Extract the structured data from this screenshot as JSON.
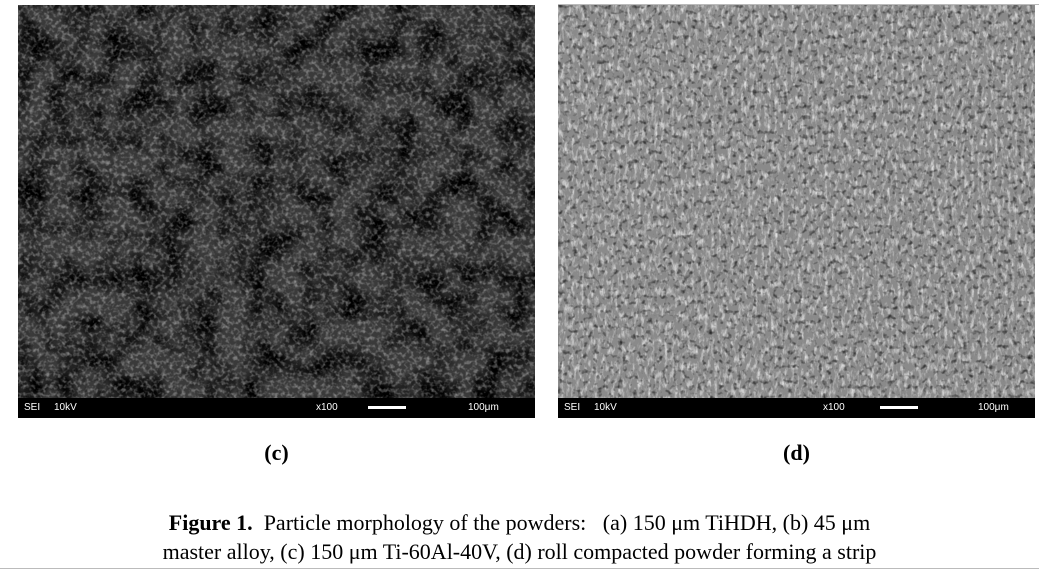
{
  "panels": [
    {
      "label": "(c)",
      "sem": {
        "mode": "SEI",
        "voltage": "10kV",
        "magnification": "x100",
        "scale": "100μm"
      }
    },
    {
      "label": "(d)",
      "sem": {
        "mode": "SEI",
        "voltage": "10kV",
        "magnification": "x100",
        "scale": "100μm"
      }
    }
  ],
  "caption": {
    "label": "Figure 1.",
    "lines": [
      "Particle morphology of the powders:   (a) 150 μm TiHDH, (b) 45 μm",
      "master alloy, (c) 150 μm Ti-60Al-40V, (d) roll compacted powder forming a strip"
    ]
  }
}
